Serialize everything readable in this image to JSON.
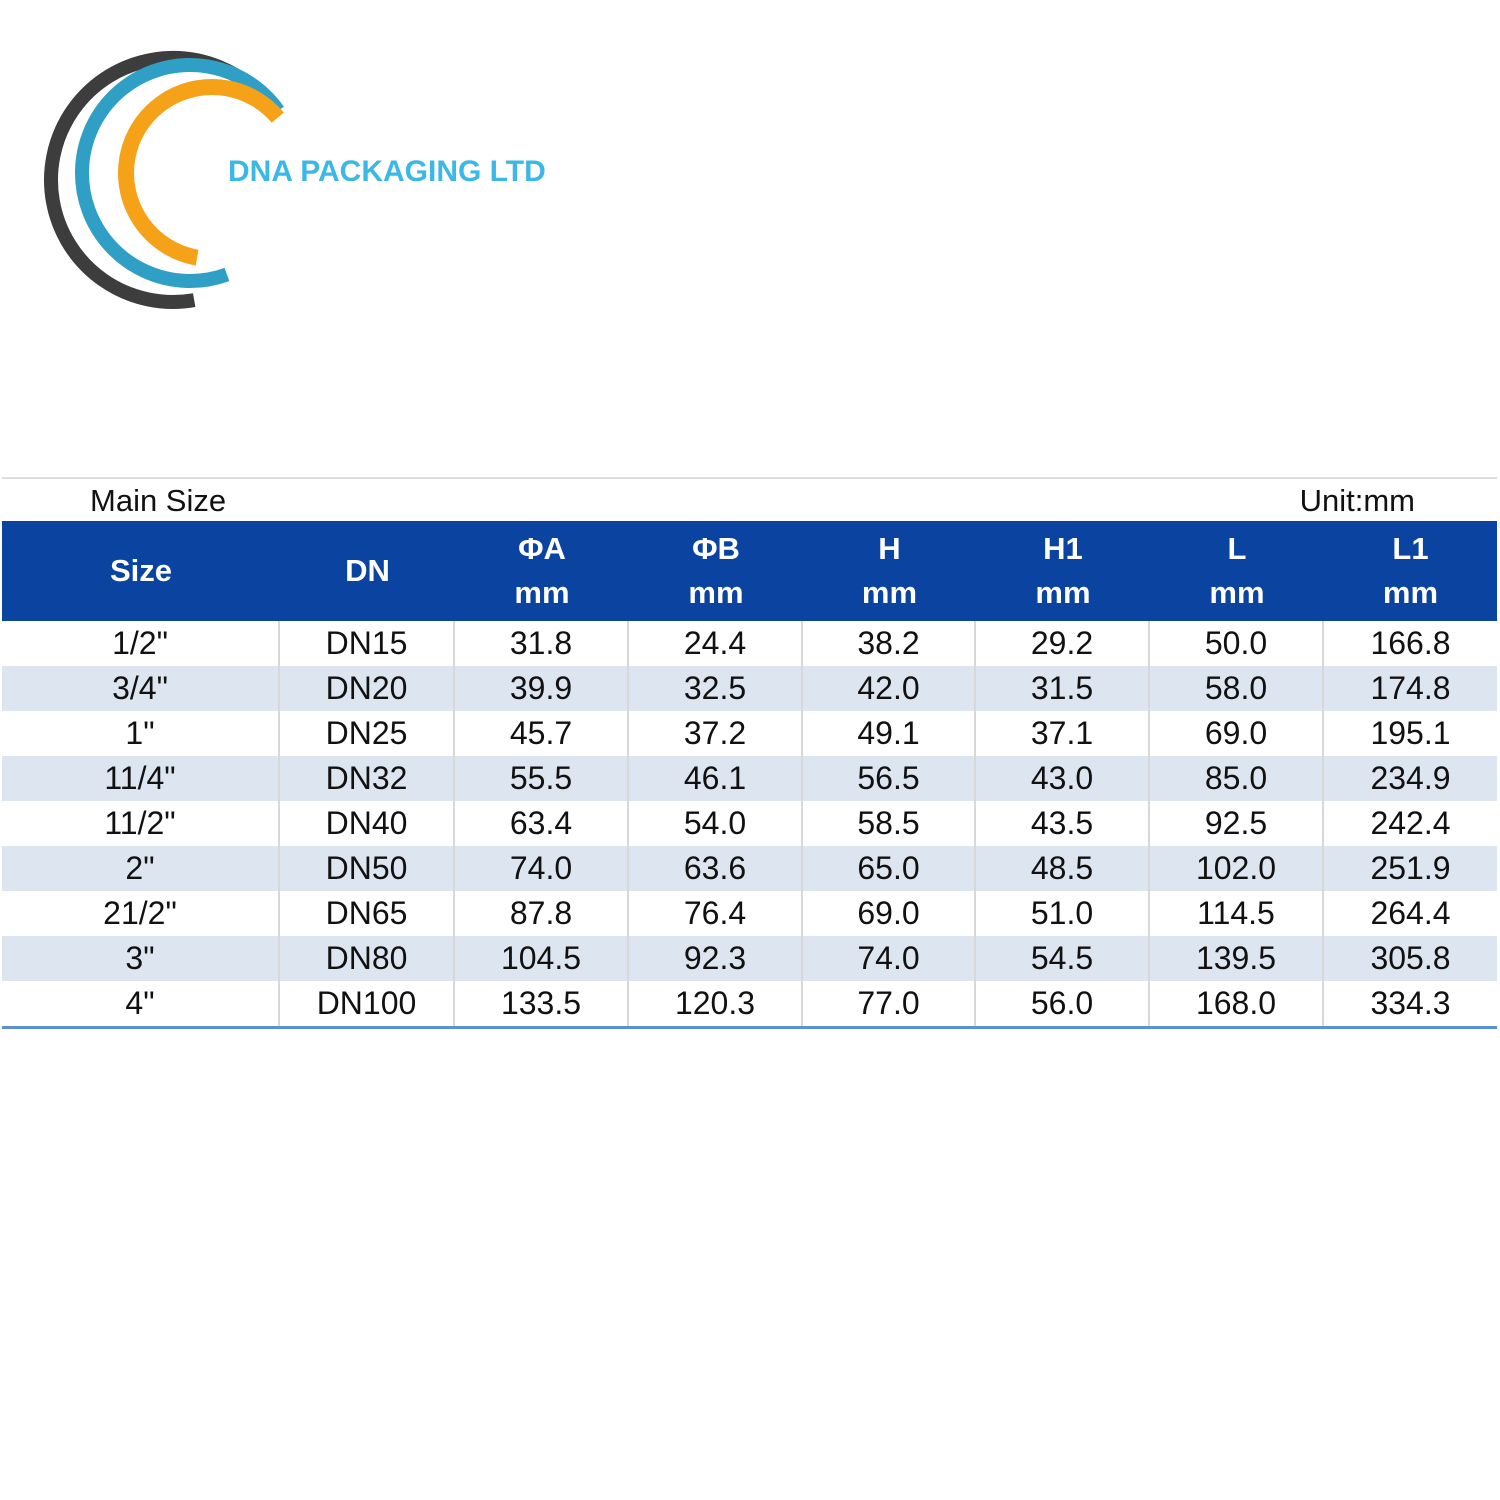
{
  "logo": {
    "text": "DNA PACKAGING LTD"
  },
  "table": {
    "caption": "Main Size",
    "unit": "Unit:mm",
    "headers": [
      {
        "name": "Size"
      },
      {
        "name": "DN"
      },
      {
        "name": "ΦA",
        "unit": "mm"
      },
      {
        "name": "ΦB",
        "unit": "mm"
      },
      {
        "name": "H",
        "unit": "mm"
      },
      {
        "name": "H1",
        "unit": "mm"
      },
      {
        "name": "L",
        "unit": "mm"
      },
      {
        "name": "L1",
        "unit": "mm"
      }
    ],
    "rows": [
      [
        "1/2\"",
        "DN15",
        "31.8",
        "24.4",
        "38.2",
        "29.2",
        "50.0",
        "166.8"
      ],
      [
        "3/4\"",
        "DN20",
        "39.9",
        "32.5",
        "42.0",
        "31.5",
        "58.0",
        "174.8"
      ],
      [
        "1\"",
        "DN25",
        "45.7",
        "37.2",
        "49.1",
        "37.1",
        "69.0",
        "195.1"
      ],
      [
        "11/4\"",
        "DN32",
        "55.5",
        "46.1",
        "56.5",
        "43.0",
        "85.0",
        "234.9"
      ],
      [
        "11/2\"",
        "DN40",
        "63.4",
        "54.0",
        "58.5",
        "43.5",
        "92.5",
        "242.4"
      ],
      [
        "2\"",
        "DN50",
        "74.0",
        "63.6",
        "65.0",
        "48.5",
        "102.0",
        "251.9"
      ],
      [
        "21/2\"",
        "DN65",
        "87.8",
        "76.4",
        "69.0",
        "51.0",
        "114.5",
        "264.4"
      ],
      [
        "3\"",
        "DN80",
        "104.5",
        "92.3",
        "74.0",
        "54.5",
        "139.5",
        "305.8"
      ],
      [
        "4\"",
        "DN100",
        "133.5",
        "120.3",
        "77.0",
        "56.0",
        "168.0",
        "334.3"
      ]
    ]
  }
}
